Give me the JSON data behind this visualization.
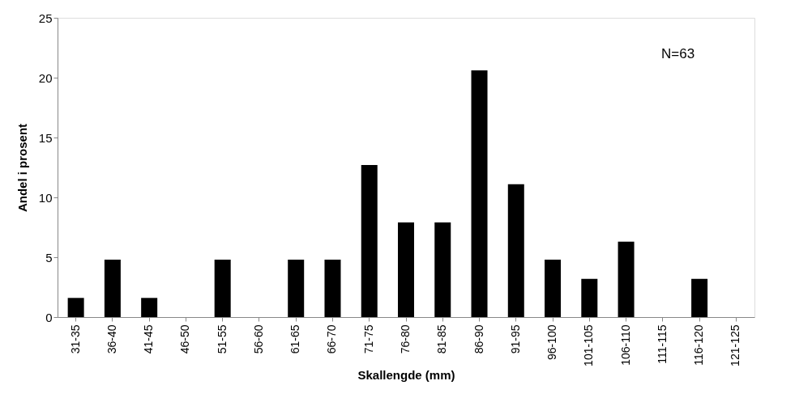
{
  "chart_data": {
    "type": "bar",
    "xlabel": "Skallengde (mm)",
    "ylabel": "Andel i prosent",
    "categories": [
      "31-35",
      "36-40",
      "41-45",
      "46-50",
      "51-55",
      "56-60",
      "61-65",
      "66-70",
      "71-75",
      "76-80",
      "81-85",
      "86-90",
      "91-95",
      "96-100",
      "101-105",
      "106-110",
      "111-115",
      "116-120",
      "121-125"
    ],
    "series": [
      {
        "color": "#000000",
        "values": [
          1.6,
          4.8,
          1.6,
          0,
          4.8,
          0,
          4.8,
          4.8,
          12.7,
          7.9,
          7.9,
          20.6,
          11.1,
          4.8,
          3.2,
          6.3,
          0,
          3.2,
          0
        ]
      }
    ],
    "ylim": [
      0,
      25
    ],
    "yticks": [
      0,
      5,
      10,
      15,
      20,
      25
    ],
    "grid": false,
    "annotations": [
      "N=63"
    ]
  }
}
